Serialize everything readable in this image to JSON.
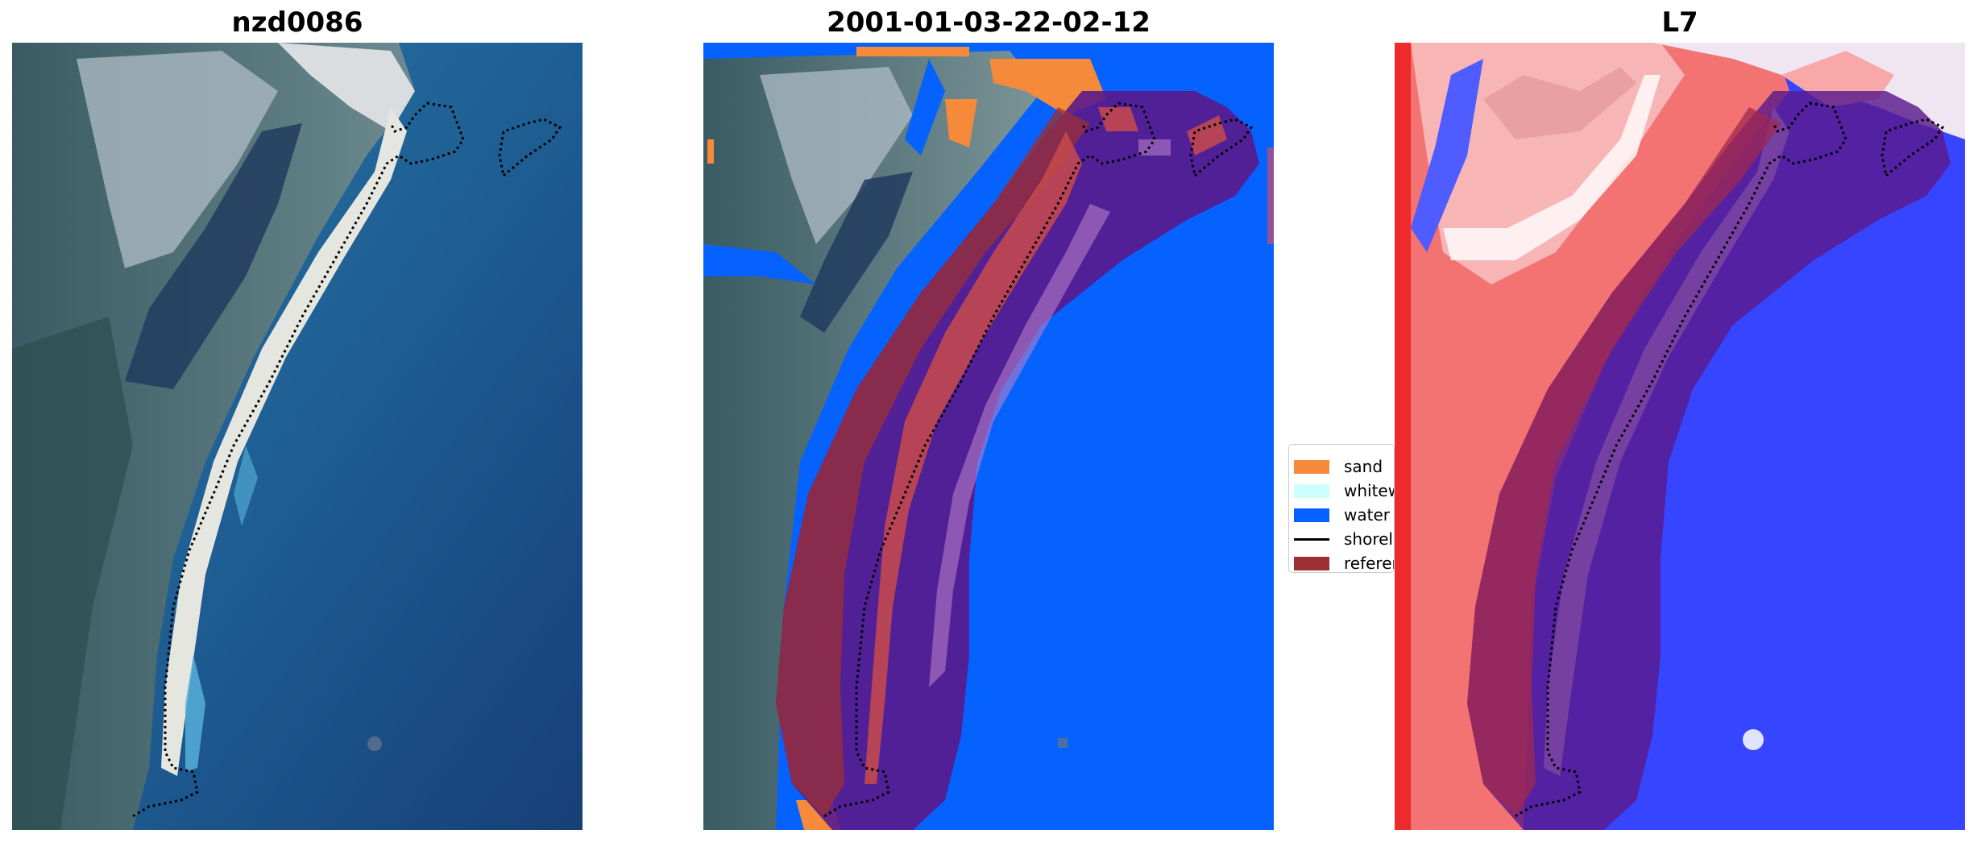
{
  "panels": [
    {
      "title": "nzd0086",
      "view": "RGB image"
    },
    {
      "title": "2001-01-03-22-02-12",
      "view": "classified image"
    },
    {
      "title": "L7",
      "view": "index image"
    }
  ],
  "legend": {
    "items": [
      {
        "label": "sand",
        "color": "#f58a3a",
        "kind": "patch"
      },
      {
        "label": "whitew",
        "color": "#ccffff",
        "kind": "patch"
      },
      {
        "label": "water",
        "color": "#0562ff",
        "kind": "patch"
      },
      {
        "label": "shorel",
        "color": "#000000",
        "kind": "line"
      },
      {
        "label": "referer",
        "color": "#9b2f34",
        "kind": "patch"
      }
    ]
  },
  "colors": {
    "ocean": "#1f5c8f",
    "sand": "#f58a3a",
    "water": "#0562ff",
    "buffer_overlay": "#5a1a8c",
    "reference": "#9b2f34",
    "index_red": "#f46a6a",
    "index_blue": "#2d3dff"
  }
}
